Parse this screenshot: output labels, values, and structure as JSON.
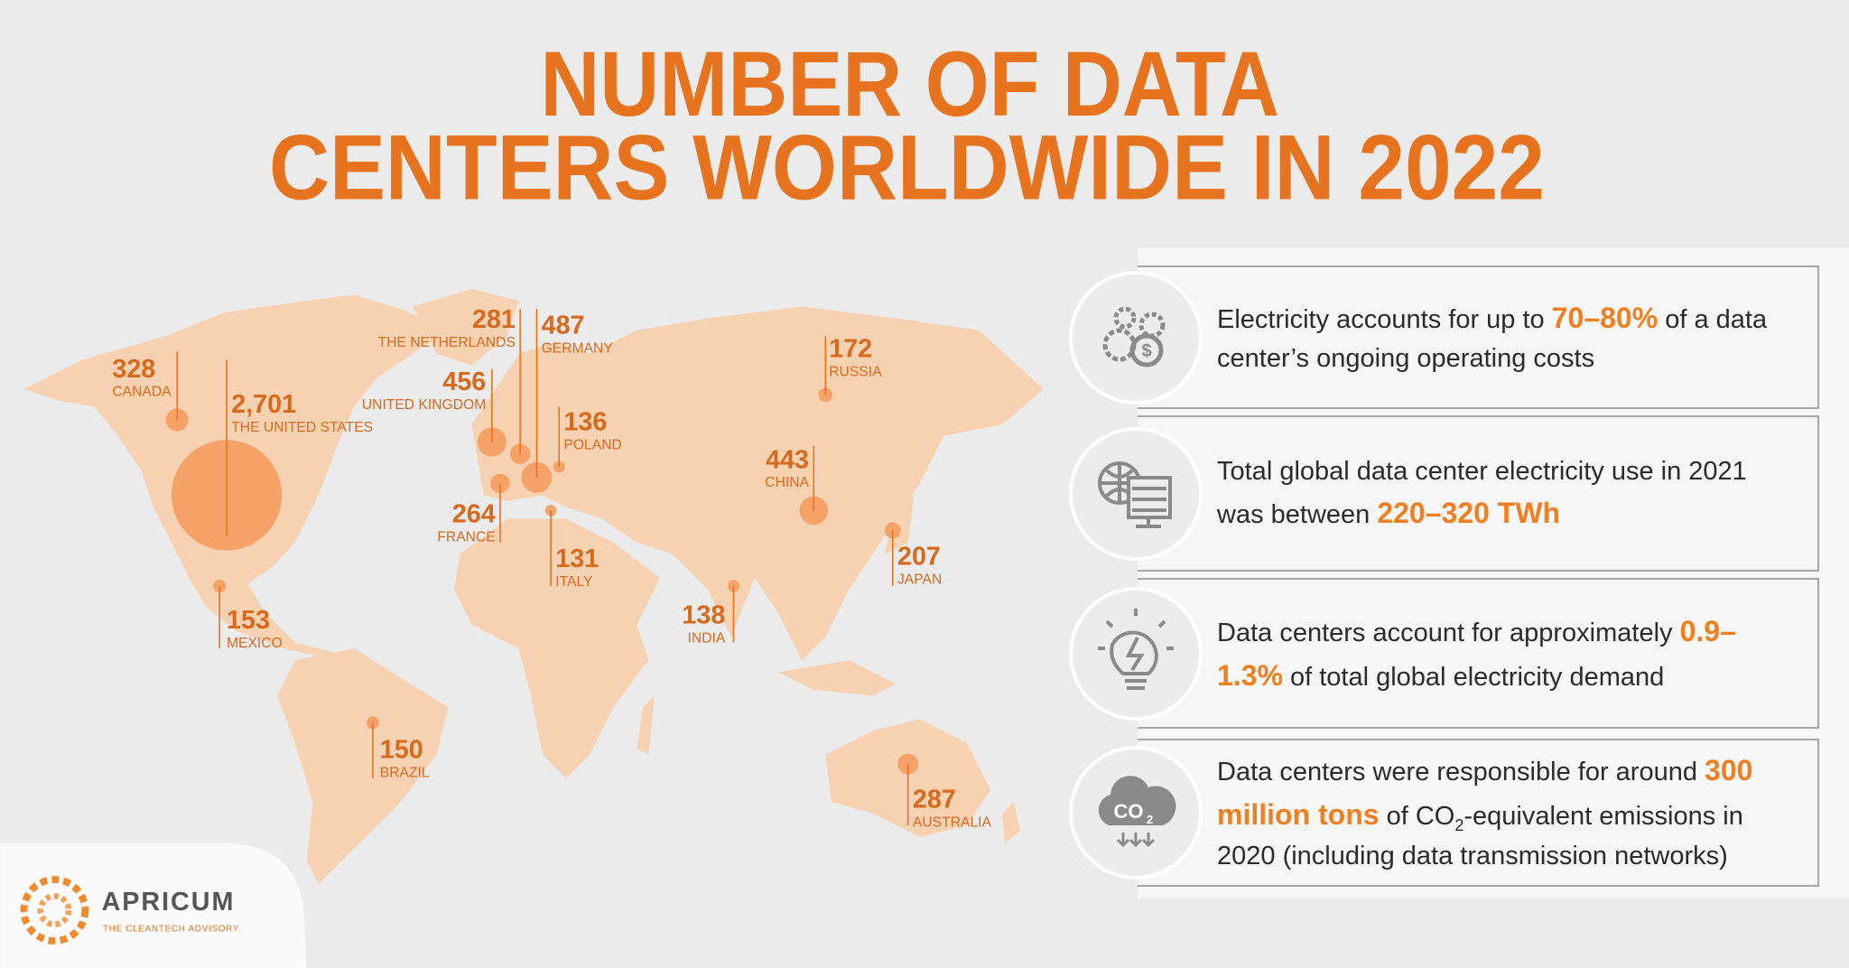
{
  "chart_data": {
    "type": "bubble-map",
    "title_lines": [
      "NUMBER OF DATA",
      "CENTERS WORLDWIDE IN 2022"
    ],
    "categories": [
      "CANADA",
      "THE UNITED STATES",
      "MEXICO",
      "BRAZIL",
      "UNITED KINGDOM",
      "THE NETHERLANDS",
      "GERMANY",
      "FRANCE",
      "POLAND",
      "ITALY",
      "RUSSIA",
      "CHINA",
      "JAPAN",
      "INDIA",
      "AUSTRALIA"
    ],
    "values": [
      328,
      2701,
      153,
      150,
      456,
      281,
      487,
      264,
      136,
      131,
      172,
      443,
      207,
      138,
      287
    ],
    "value_labels": [
      "328",
      "2,701",
      "153",
      "150",
      "456",
      "281",
      "487",
      "264",
      "136",
      "131",
      "172",
      "443",
      "207",
      "138",
      "287"
    ],
    "color": "#e8731e"
  },
  "facts": [
    {
      "parts": [
        "Electricity accounts for up to ",
        "70–80%",
        " of a data center’s ongoing operating costs"
      ]
    },
    {
      "parts": [
        "Total global data center electricity use in 2021 was between ",
        "220–320 TWh"
      ]
    },
    {
      "parts": [
        "Data centers account for approximately ",
        "0.9–1.3%",
        " of total global electricity demand"
      ]
    },
    {
      "parts": [
        "Data centers were responsible for around ",
        "300 million tons",
        " of CO",
        "2",
        "-equivalent emissions in 2020 (including data transmission networks)"
      ],
      "icon_text": [
        "CO",
        "2"
      ]
    }
  ],
  "logo": {
    "name": "APRICUM",
    "tagline": "THE CLEANTECH ADVISORY."
  }
}
